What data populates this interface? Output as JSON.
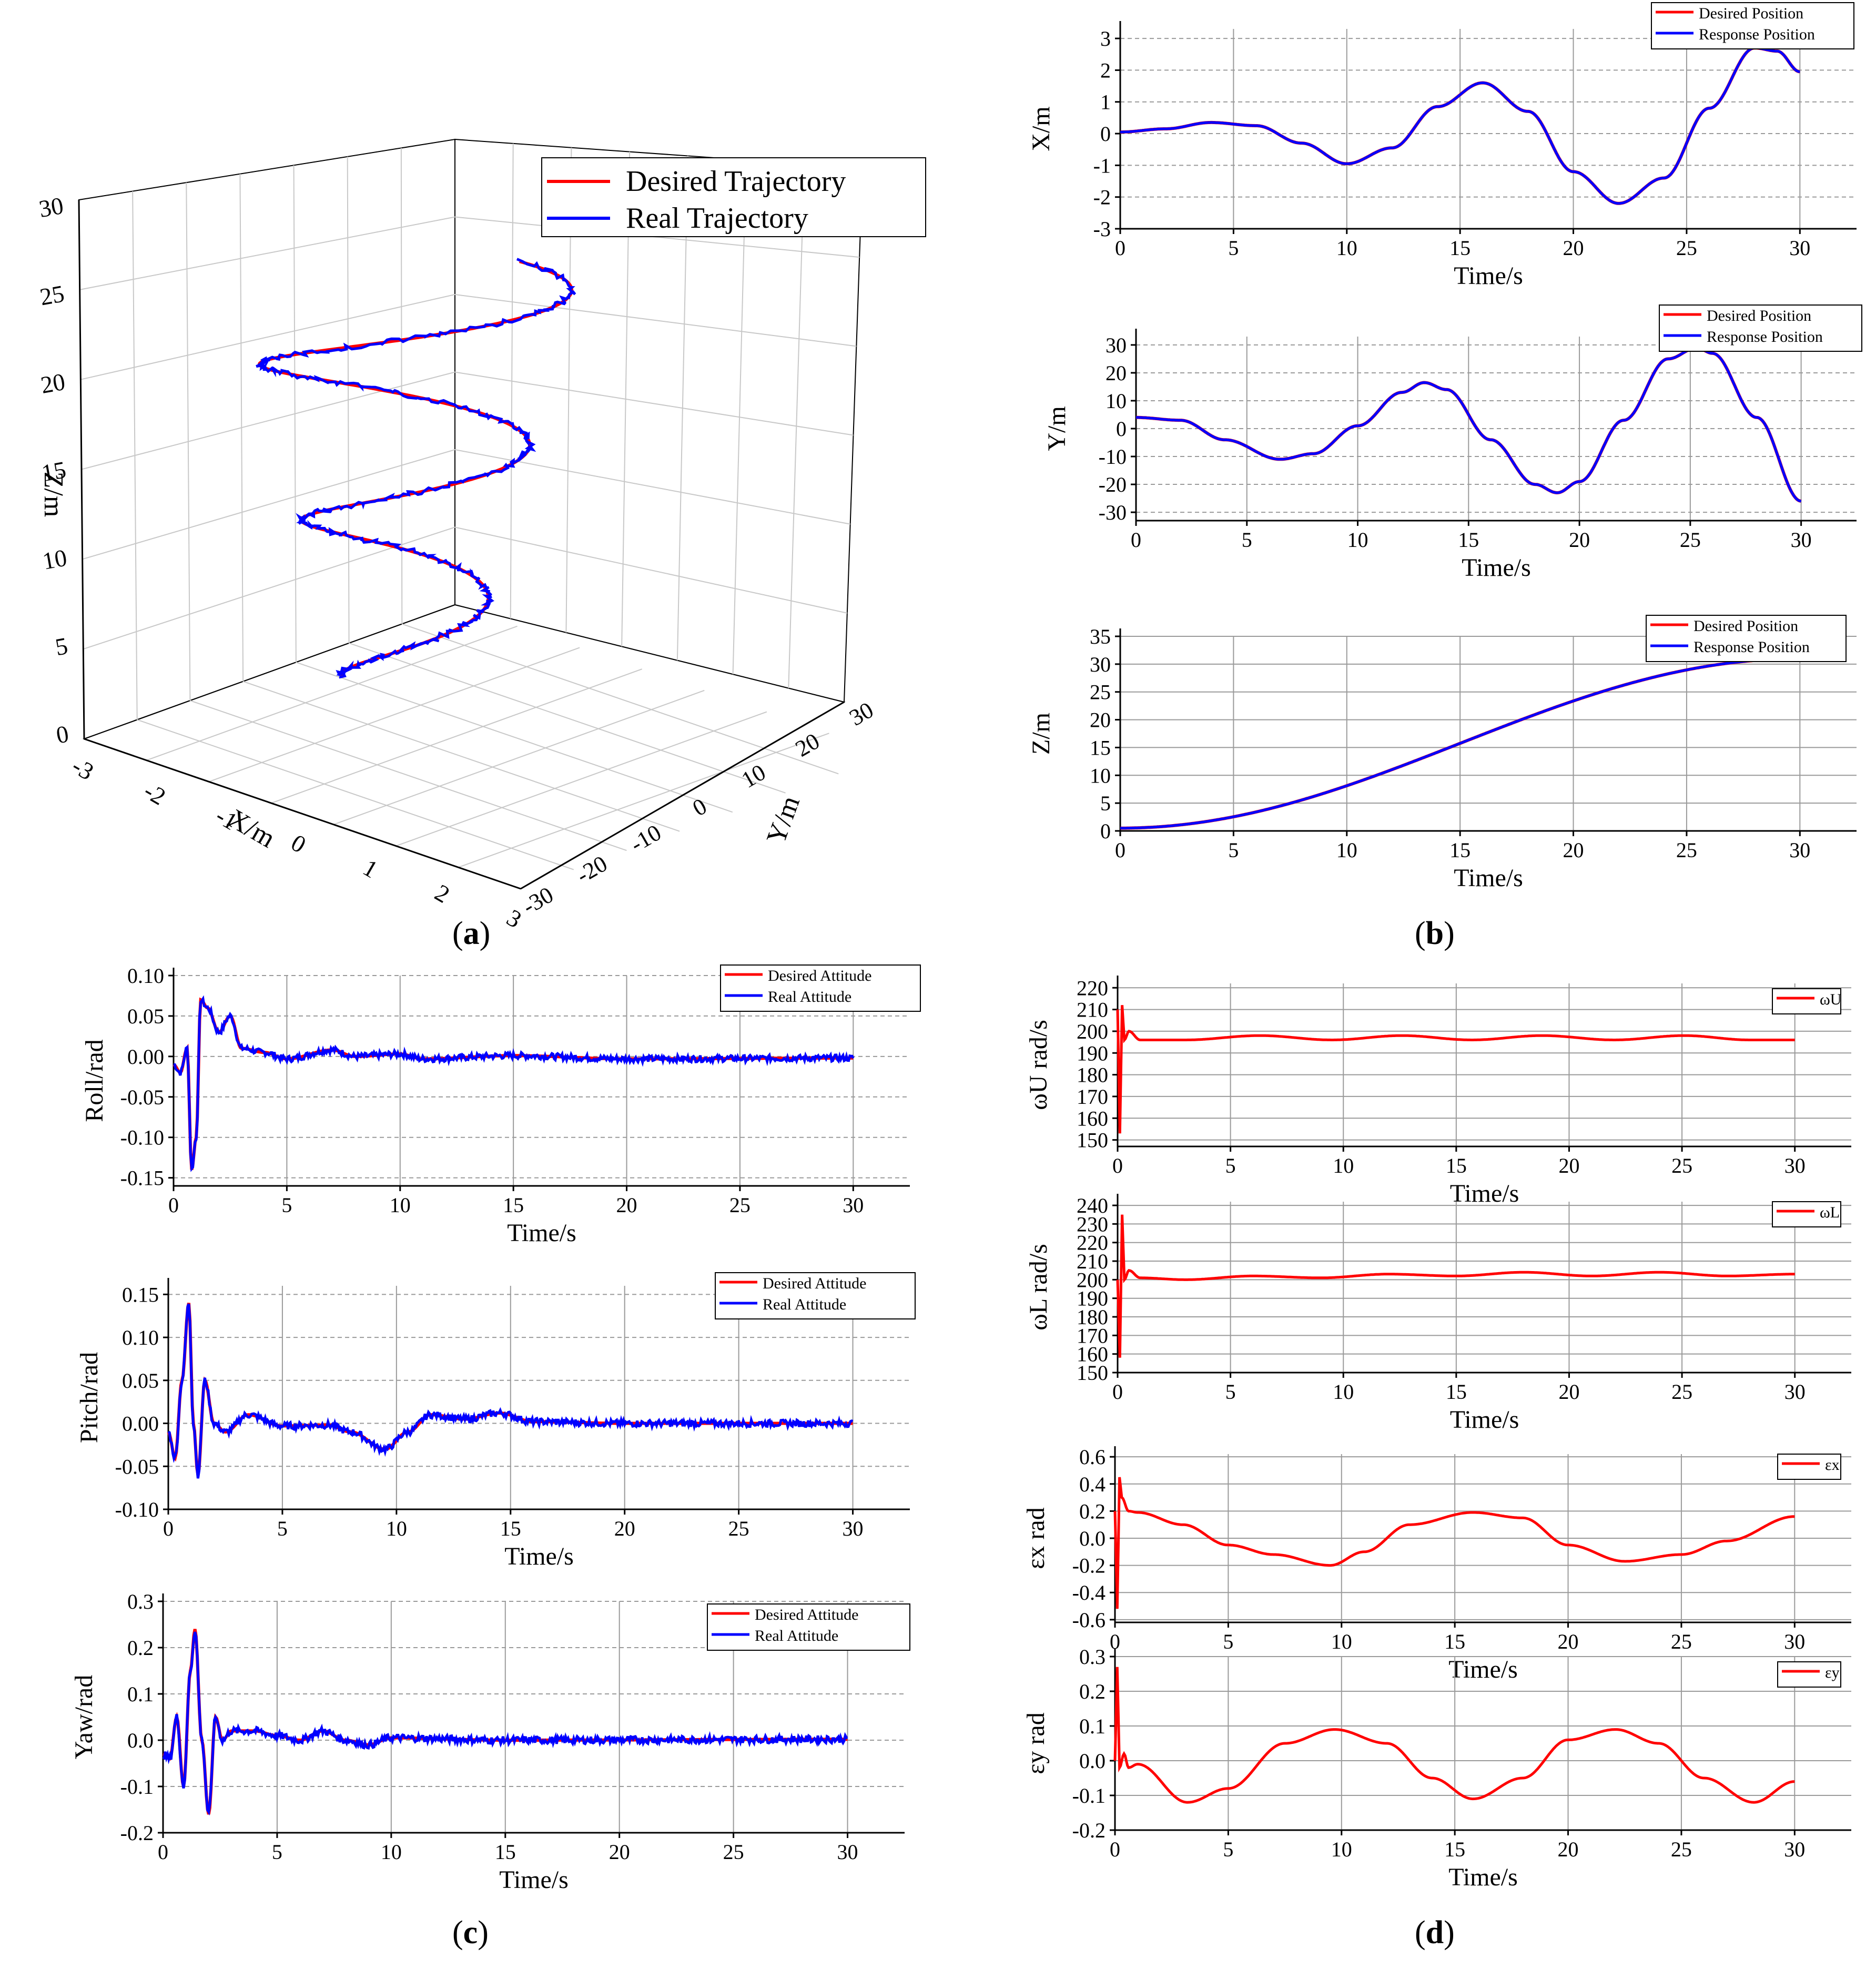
{
  "figure": {
    "captions": {
      "a": "a",
      "b": "b",
      "c": "c",
      "d": "d"
    },
    "colors": {
      "desired": "#ff0000",
      "real": "#0000ff",
      "grid": "#9a9a9a"
    }
  },
  "chart_data": [
    {
      "id": "traj3d",
      "type": "line",
      "panel": "a",
      "title": "",
      "xlabel": "X/m",
      "ylabel": "Y/m",
      "zlabel": "Z/m",
      "xlim": [
        -3,
        3
      ],
      "ylim": [
        -30,
        30
      ],
      "zlim": [
        0,
        30
      ],
      "x_ticks": [
        "-3",
        "-2",
        "-1",
        "0",
        "1",
        "2",
        "3"
      ],
      "y_ticks": [
        "-30",
        "-20",
        "-10",
        "0",
        "10",
        "20",
        "30"
      ],
      "z_ticks": [
        "0",
        "5",
        "10",
        "15",
        "20",
        "25",
        "30"
      ],
      "legend": [
        "Desired Trajectory",
        "Real Trajectory"
      ],
      "series": [
        {
          "name": "Desired Trajectory",
          "color": "#ff0000",
          "turns": 2.6,
          "start_z": 1,
          "end_z": 29
        },
        {
          "name": "Real Trajectory",
          "color": "#0000ff",
          "turns": 2.6,
          "start_z": 1,
          "end_z": 29,
          "noise": 0.6
        }
      ]
    },
    {
      "id": "posX",
      "type": "line",
      "panel": "b",
      "xlabel": "Time/s",
      "ylabel": "X/m",
      "xlim": [
        0,
        32.5
      ],
      "ylim": [
        -3,
        3.3
      ],
      "x_ticks": [
        "0",
        "5",
        "10",
        "15",
        "20",
        "25",
        "30"
      ],
      "y_ticks": [
        "-3",
        "-2",
        "-1",
        "0",
        "1",
        "2",
        "3"
      ],
      "legend": [
        "Desired Position",
        "Response Position"
      ],
      "series": [
        {
          "name": "Desired Position",
          "color": "#ff0000",
          "x": [
            0,
            2,
            4,
            6,
            8,
            10,
            12,
            14,
            16,
            18,
            20,
            22,
            24,
            26,
            28,
            29,
            30
          ],
          "y": [
            0.05,
            0.15,
            0.35,
            0.25,
            -0.3,
            -0.95,
            -0.45,
            0.85,
            1.6,
            0.7,
            -1.2,
            -2.2,
            -1.4,
            0.8,
            2.7,
            2.6,
            1.95
          ]
        },
        {
          "name": "Response Position",
          "color": "#0000ff",
          "x": [
            0,
            2,
            4,
            6,
            8,
            10,
            12,
            14,
            16,
            18,
            20,
            22,
            24,
            26,
            28,
            29,
            30
          ],
          "y": [
            0.05,
            0.15,
            0.35,
            0.25,
            -0.3,
            -0.95,
            -0.45,
            0.85,
            1.6,
            0.7,
            -1.2,
            -2.2,
            -1.4,
            0.8,
            2.7,
            2.6,
            1.95
          ]
        }
      ]
    },
    {
      "id": "posY",
      "type": "line",
      "panel": "b",
      "xlabel": "Time/s",
      "ylabel": "Y/m",
      "xlim": [
        0,
        32.5
      ],
      "ylim": [
        -33,
        33
      ],
      "x_ticks": [
        "0",
        "5",
        "10",
        "15",
        "20",
        "25",
        "30"
      ],
      "y_ticks": [
        "-30",
        "-20",
        "-10",
        "0",
        "10",
        "20",
        "30"
      ],
      "legend": [
        "Desired Position",
        "Response Position"
      ],
      "series": [
        {
          "name": "Desired Position",
          "color": "#ff0000",
          "x": [
            0,
            2,
            4,
            6.5,
            8,
            10,
            12,
            13,
            14,
            16,
            18,
            19,
            20,
            22,
            24,
            25.3,
            26,
            28,
            30
          ],
          "y": [
            4,
            3,
            -4,
            -11,
            -9,
            1,
            13,
            16.5,
            14,
            -4,
            -20,
            -23,
            -19,
            3,
            25,
            29,
            27,
            4,
            -26
          ]
        },
        {
          "name": "Response Position",
          "color": "#0000ff",
          "x": [
            0,
            2,
            4,
            6.5,
            8,
            10,
            12,
            13,
            14,
            16,
            18,
            19,
            20,
            22,
            24,
            25.3,
            26,
            28,
            30
          ],
          "y": [
            4,
            3,
            -4,
            -11,
            -9,
            1,
            13,
            16.5,
            14,
            -4,
            -20,
            -23,
            -19,
            3,
            25,
            29,
            27,
            4,
            -26
          ]
        }
      ]
    },
    {
      "id": "posZ",
      "type": "line",
      "panel": "b",
      "xlabel": "Time/s",
      "ylabel": "Z/m",
      "xlim": [
        0,
        32.5
      ],
      "ylim": [
        0,
        35
      ],
      "x_ticks": [
        "0",
        "5",
        "10",
        "15",
        "20",
        "25",
        "30"
      ],
      "y_ticks": [
        "0",
        "5",
        "10",
        "15",
        "20",
        "25",
        "30",
        "35"
      ],
      "legend": [
        "Desired Position",
        "Response Position"
      ],
      "series": [
        {
          "name": "Desired Position",
          "color": "#ff0000",
          "x": [
            0,
            30
          ],
          "y": [
            0.5,
            31
          ]
        },
        {
          "name": "Response Position",
          "color": "#0000ff",
          "x": [
            0,
            30
          ],
          "y": [
            0.5,
            31
          ]
        }
      ]
    },
    {
      "id": "roll",
      "type": "line",
      "panel": "c",
      "xlabel": "Time/s",
      "ylabel": "Roll/rad",
      "xlim": [
        0,
        32.5
      ],
      "ylim": [
        -0.16,
        0.1
      ],
      "x_ticks": [
        "0",
        "5",
        "10",
        "15",
        "20",
        "25",
        "30"
      ],
      "y_ticks": [
        "-0.15",
        "-0.10",
        "-0.05",
        "0.00",
        "0.05",
        "0.10"
      ],
      "legend": [
        "Desired Attitude",
        "Real Attitude"
      ],
      "series": [
        {
          "name": "Desired Attitude",
          "color": "#ff0000",
          "x": [
            0,
            0.3,
            0.6,
            0.8,
            1.0,
            1.2,
            1.5,
            2.0,
            2.5,
            3.0,
            4,
            5,
            7,
            8,
            10,
            11,
            15,
            20,
            30
          ],
          "y": [
            -0.01,
            -0.02,
            0.01,
            -0.14,
            -0.1,
            0.07,
            0.06,
            0.03,
            0.05,
            0.01,
            0.005,
            -0.003,
            0.008,
            0.0,
            0.003,
            -0.003,
            0.001,
            -0.003,
            -0.002
          ]
        },
        {
          "name": "Real Attitude",
          "color": "#0000ff",
          "x": [
            0,
            0.3,
            0.6,
            0.8,
            1.0,
            1.2,
            1.5,
            2.0,
            2.5,
            3.0,
            4,
            5,
            7,
            8,
            10,
            11,
            15,
            20,
            30
          ],
          "y": [
            -0.01,
            -0.02,
            0.01,
            -0.14,
            -0.1,
            0.07,
            0.06,
            0.03,
            0.05,
            0.01,
            0.005,
            -0.003,
            0.008,
            0.0,
            0.003,
            -0.003,
            0.001,
            -0.003,
            -0.002
          ],
          "noise": 0.004
        }
      ]
    },
    {
      "id": "pitch",
      "type": "line",
      "panel": "c",
      "xlabel": "Time/s",
      "ylabel": "Pitch/rad",
      "xlim": [
        0,
        32.5
      ],
      "ylim": [
        -0.1,
        0.16
      ],
      "x_ticks": [
        "0",
        "5",
        "10",
        "15",
        "20",
        "25",
        "30"
      ],
      "y_ticks": [
        "-0.10",
        "-0.05",
        "0.00",
        "0.05",
        "0.10",
        "0.15"
      ],
      "legend": [
        "Desired Attitude",
        "Real Attitude"
      ],
      "series": [
        {
          "name": "Desired Attitude",
          "color": "#ff0000",
          "x": [
            0,
            0.3,
            0.6,
            0.9,
            1.1,
            1.3,
            1.6,
            2.0,
            2.5,
            3.5,
            5,
            7,
            8,
            9.5,
            10.5,
            11.5,
            13,
            14.5,
            16,
            20,
            30
          ],
          "y": [
            -0.01,
            -0.04,
            0.05,
            0.14,
            0.0,
            -0.06,
            0.05,
            0.0,
            -0.01,
            0.01,
            -0.003,
            -0.002,
            -0.01,
            -0.03,
            -0.01,
            0.01,
            0.005,
            0.012,
            0.002,
            0.0,
            0.0
          ]
        },
        {
          "name": "Real Attitude",
          "color": "#0000ff",
          "x": [
            0,
            0.3,
            0.6,
            0.9,
            1.1,
            1.3,
            1.6,
            2.0,
            2.5,
            3.5,
            5,
            7,
            8,
            9.5,
            10.5,
            11.5,
            13,
            14.5,
            16,
            20,
            30
          ],
          "y": [
            -0.01,
            -0.04,
            0.05,
            0.14,
            0.0,
            -0.06,
            0.05,
            0.0,
            -0.01,
            0.01,
            -0.003,
            -0.002,
            -0.01,
            -0.03,
            -0.01,
            0.01,
            0.005,
            0.012,
            0.002,
            0.0,
            0.0
          ],
          "noise": 0.004
        }
      ]
    },
    {
      "id": "yaw",
      "type": "line",
      "panel": "c",
      "xlabel": "Time/s",
      "ylabel": "Yaw/rad",
      "xlim": [
        0,
        32.5
      ],
      "ylim": [
        -0.2,
        0.3
      ],
      "x_ticks": [
        "0",
        "5",
        "10",
        "15",
        "20",
        "25",
        "30"
      ],
      "y_ticks": [
        "-0.2",
        "-0.1",
        "0.0",
        "0.1",
        "0.2",
        "0.3"
      ],
      "legend": [
        "Desired Attitude",
        "Real Attitude"
      ],
      "series": [
        {
          "name": "Desired Attitude",
          "color": "#ff0000",
          "x": [
            0,
            0.3,
            0.6,
            0.9,
            1.2,
            1.4,
            1.7,
            2.0,
            2.3,
            2.6,
            3,
            4,
            5,
            6,
            7,
            8,
            9,
            10,
            15,
            30
          ],
          "y": [
            -0.03,
            -0.04,
            0.05,
            -0.1,
            0.15,
            0.24,
            0.0,
            -0.16,
            0.05,
            0.0,
            0.02,
            0.02,
            0.01,
            0.0,
            0.02,
            0.0,
            -0.01,
            0.005,
            0.0,
            0.002
          ]
        },
        {
          "name": "Real Attitude",
          "color": "#0000ff",
          "x": [
            0,
            0.3,
            0.6,
            0.9,
            1.2,
            1.4,
            1.7,
            2.0,
            2.3,
            2.6,
            3,
            4,
            5,
            6,
            7,
            8,
            9,
            10,
            15,
            30
          ],
          "y": [
            -0.03,
            -0.04,
            0.05,
            -0.1,
            0.15,
            0.24,
            0.0,
            -0.16,
            0.05,
            0.0,
            0.02,
            0.02,
            0.01,
            0.0,
            0.02,
            0.0,
            -0.01,
            0.005,
            0.0,
            0.002
          ],
          "noise": 0.008
        }
      ]
    },
    {
      "id": "omegaU",
      "type": "line",
      "panel": "d",
      "xlabel": "Time/s",
      "ylabel": "ωU rad/s",
      "xlim": [
        0,
        32.5
      ],
      "ylim": [
        147,
        222
      ],
      "x_ticks": [
        "0",
        "5",
        "10",
        "15",
        "20",
        "25",
        "30"
      ],
      "y_ticks": [
        "150",
        "160",
        "170",
        "180",
        "190",
        "200",
        "210",
        "220"
      ],
      "legend": [
        "ωU"
      ],
      "series": [
        {
          "name": "ωU",
          "color": "#ff0000",
          "x": [
            0,
            0.1,
            0.2,
            0.3,
            0.5,
            1,
            3,
            6.3,
            9.5,
            12.6,
            15.7,
            18.8,
            22,
            25.1,
            28,
            30
          ],
          "y": [
            210,
            153,
            212,
            196,
            200,
            196,
            196,
            198,
            196,
            198,
            196,
            198,
            196,
            198,
            196,
            196
          ]
        }
      ]
    },
    {
      "id": "omegaL",
      "type": "line",
      "panel": "d",
      "xlabel": "Time/s",
      "ylabel": "ωL rad/s",
      "xlim": [
        0,
        32.5
      ],
      "ylim": [
        150,
        242
      ],
      "x_ticks": [
        "0",
        "5",
        "10",
        "15",
        "20",
        "25",
        "30"
      ],
      "y_ticks": [
        "150",
        "160",
        "170",
        "180",
        "190",
        "200",
        "210",
        "220",
        "230",
        "240"
      ],
      "legend": [
        "ωL"
      ],
      "series": [
        {
          "name": "ωL",
          "color": "#ff0000",
          "x": [
            0,
            0.1,
            0.2,
            0.3,
            0.5,
            1,
            3,
            6,
            9,
            12,
            15,
            18,
            21,
            24,
            27,
            30
          ],
          "y": [
            200,
            158,
            235,
            200,
            205,
            201,
            200,
            202,
            201,
            203,
            202,
            204,
            202,
            204,
            202,
            203
          ]
        }
      ]
    },
    {
      "id": "epsX",
      "type": "line",
      "panel": "d",
      "xlabel": "Time/s",
      "ylabel": "εx rad",
      "xlim": [
        0,
        32.5
      ],
      "ylim": [
        -0.62,
        0.62
      ],
      "x_ticks": [
        "0",
        "5",
        "10",
        "15",
        "20",
        "25",
        "30"
      ],
      "y_ticks": [
        "-0.6",
        "-0.4",
        "-0.2",
        "0.0",
        "0.2",
        "0.4",
        "0.6"
      ],
      "legend": [
        "εx"
      ],
      "series": [
        {
          "name": "εx",
          "color": "#ff0000",
          "x": [
            0,
            0.1,
            0.2,
            0.3,
            0.6,
            1,
            3,
            5,
            7,
            9.5,
            11,
            13,
            15.8,
            18,
            20,
            22.5,
            25,
            27,
            30
          ],
          "y": [
            0.2,
            -0.52,
            0.45,
            0.3,
            0.2,
            0.19,
            0.1,
            -0.05,
            -0.12,
            -0.2,
            -0.1,
            0.1,
            0.19,
            0.15,
            -0.05,
            -0.17,
            -0.12,
            -0.02,
            0.16
          ]
        }
      ]
    },
    {
      "id": "epsY",
      "type": "line",
      "panel": "d",
      "xlabel": "Time/s",
      "ylabel": "εy rad",
      "xlim": [
        0,
        32.5
      ],
      "ylim": [
        -0.2,
        0.3
      ],
      "x_ticks": [
        "0",
        "5",
        "10",
        "15",
        "20",
        "25",
        "30"
      ],
      "y_ticks": [
        "-0.2",
        "-0.1",
        "0.0",
        "0.1",
        "0.2",
        "0.3"
      ],
      "legend": [
        "εy"
      ],
      "series": [
        {
          "name": "εy",
          "color": "#ff0000",
          "x": [
            0,
            0.1,
            0.2,
            0.4,
            0.6,
            1,
            3.2,
            5,
            7.5,
            9.7,
            12,
            14,
            15.8,
            18,
            20,
            22.1,
            24,
            26,
            28.2,
            30
          ],
          "y": [
            0.0,
            0.27,
            -0.02,
            0.02,
            -0.02,
            -0.01,
            -0.12,
            -0.08,
            0.05,
            0.09,
            0.05,
            -0.05,
            -0.11,
            -0.05,
            0.06,
            0.09,
            0.05,
            -0.05,
            -0.12,
            -0.06
          ]
        }
      ]
    }
  ]
}
